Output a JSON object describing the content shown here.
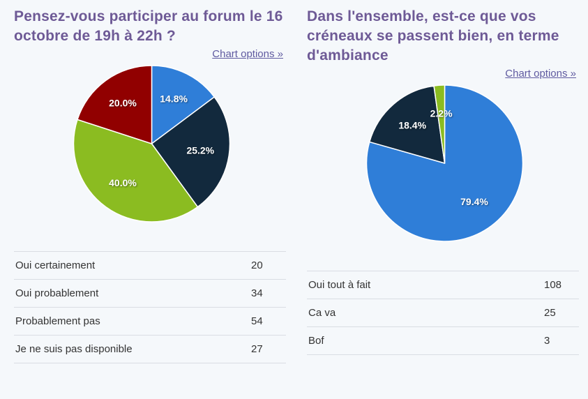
{
  "theme": {
    "background": "#f5f8fb",
    "title_color": "#6e5a96",
    "link_color": "#5f5aa0",
    "table_text_color": "#333333",
    "table_border_color": "#d9dde3",
    "pie_label_text_color": "#ffffff"
  },
  "panels": [
    {
      "title": "Pensez-vous participer au forum le 16 octobre de 19h à 22h ?",
      "chart_options_label": "Chart options »"
    },
    {
      "title": "Dans l'ensemble, est-ce que vos créneaux se passent bien, en terme d'ambiance",
      "chart_options_label": "Chart options »"
    }
  ],
  "chart_data": [
    {
      "type": "pie",
      "title": "Pensez-vous participer au forum le 16 octobre de 19h à 22h ?",
      "legend_position": "none",
      "labels_format": "percent_one_decimal",
      "start_angle_deg": 0,
      "direction": "clockwise",
      "slices": [
        {
          "label": "Oui certainement",
          "count": 20,
          "pct": 14.8,
          "color": "#2f7ed8"
        },
        {
          "label": "Oui probablement",
          "count": 34,
          "pct": 25.2,
          "color": "#12293d"
        },
        {
          "label": "Probablement pas",
          "count": 54,
          "pct": 40.0,
          "color": "#8bbc21"
        },
        {
          "label": "Je ne suis pas disponible",
          "count": 27,
          "pct": 20.0,
          "color": "#910000"
        }
      ]
    },
    {
      "type": "pie",
      "title": "Dans l'ensemble, est-ce que vos créneaux se passent bien, en terme d'ambiance",
      "legend_position": "none",
      "labels_format": "percent_one_decimal",
      "start_angle_deg": 0,
      "direction": "clockwise",
      "slices": [
        {
          "label": "Oui tout à fait",
          "count": 108,
          "pct": 79.4,
          "color": "#2f7ed8"
        },
        {
          "label": "Ca va",
          "count": 25,
          "pct": 18.4,
          "color": "#12293d"
        },
        {
          "label": "Bof",
          "count": 3,
          "pct": 2.2,
          "color": "#8bbc21"
        }
      ]
    }
  ]
}
